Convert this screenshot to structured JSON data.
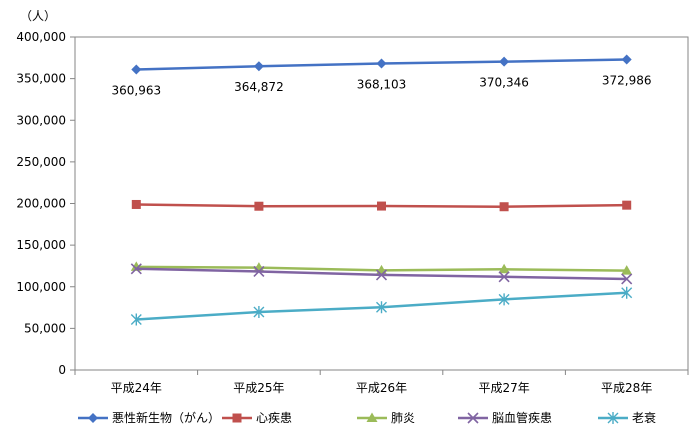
{
  "chart_data": {
    "type": "line",
    "unit_label": "（人）",
    "categories": [
      "平成24年",
      "平成25年",
      "平成26年",
      "平成27年",
      "平成28年"
    ],
    "ylim": [
      0,
      400000
    ],
    "yticks": [
      "0",
      "50,000",
      "100,000",
      "150,000",
      "200,000",
      "250,000",
      "300,000",
      "350,000",
      "400,000"
    ],
    "grid": false,
    "legend_position": "bottom",
    "series": [
      {
        "name": "悪性新生物（がん）",
        "color": "#4472C4",
        "marker": "diamond",
        "values": [
          360963,
          364872,
          368103,
          370346,
          372986
        ],
        "labels": [
          "360,963",
          "364,872",
          "368,103",
          "370,346",
          "372,986"
        ]
      },
      {
        "name": "心疾患",
        "color": "#C0504D",
        "marker": "square",
        "values": [
          198836,
          196723,
          196926,
          196113,
          198006
        ]
      },
      {
        "name": "肺炎",
        "color": "#9BBB59",
        "marker": "triangle",
        "values": [
          123925,
          122969,
          119650,
          120953,
          119300
        ]
      },
      {
        "name": "脳血管疾患",
        "color": "#8064A2",
        "marker": "x",
        "values": [
          121602,
          118347,
          114207,
          111973,
          109320
        ]
      },
      {
        "name": "老衰",
        "color": "#4BACC6",
        "marker": "star",
        "values": [
          60719,
          69720,
          75389,
          84810,
          92806
        ]
      }
    ]
  }
}
